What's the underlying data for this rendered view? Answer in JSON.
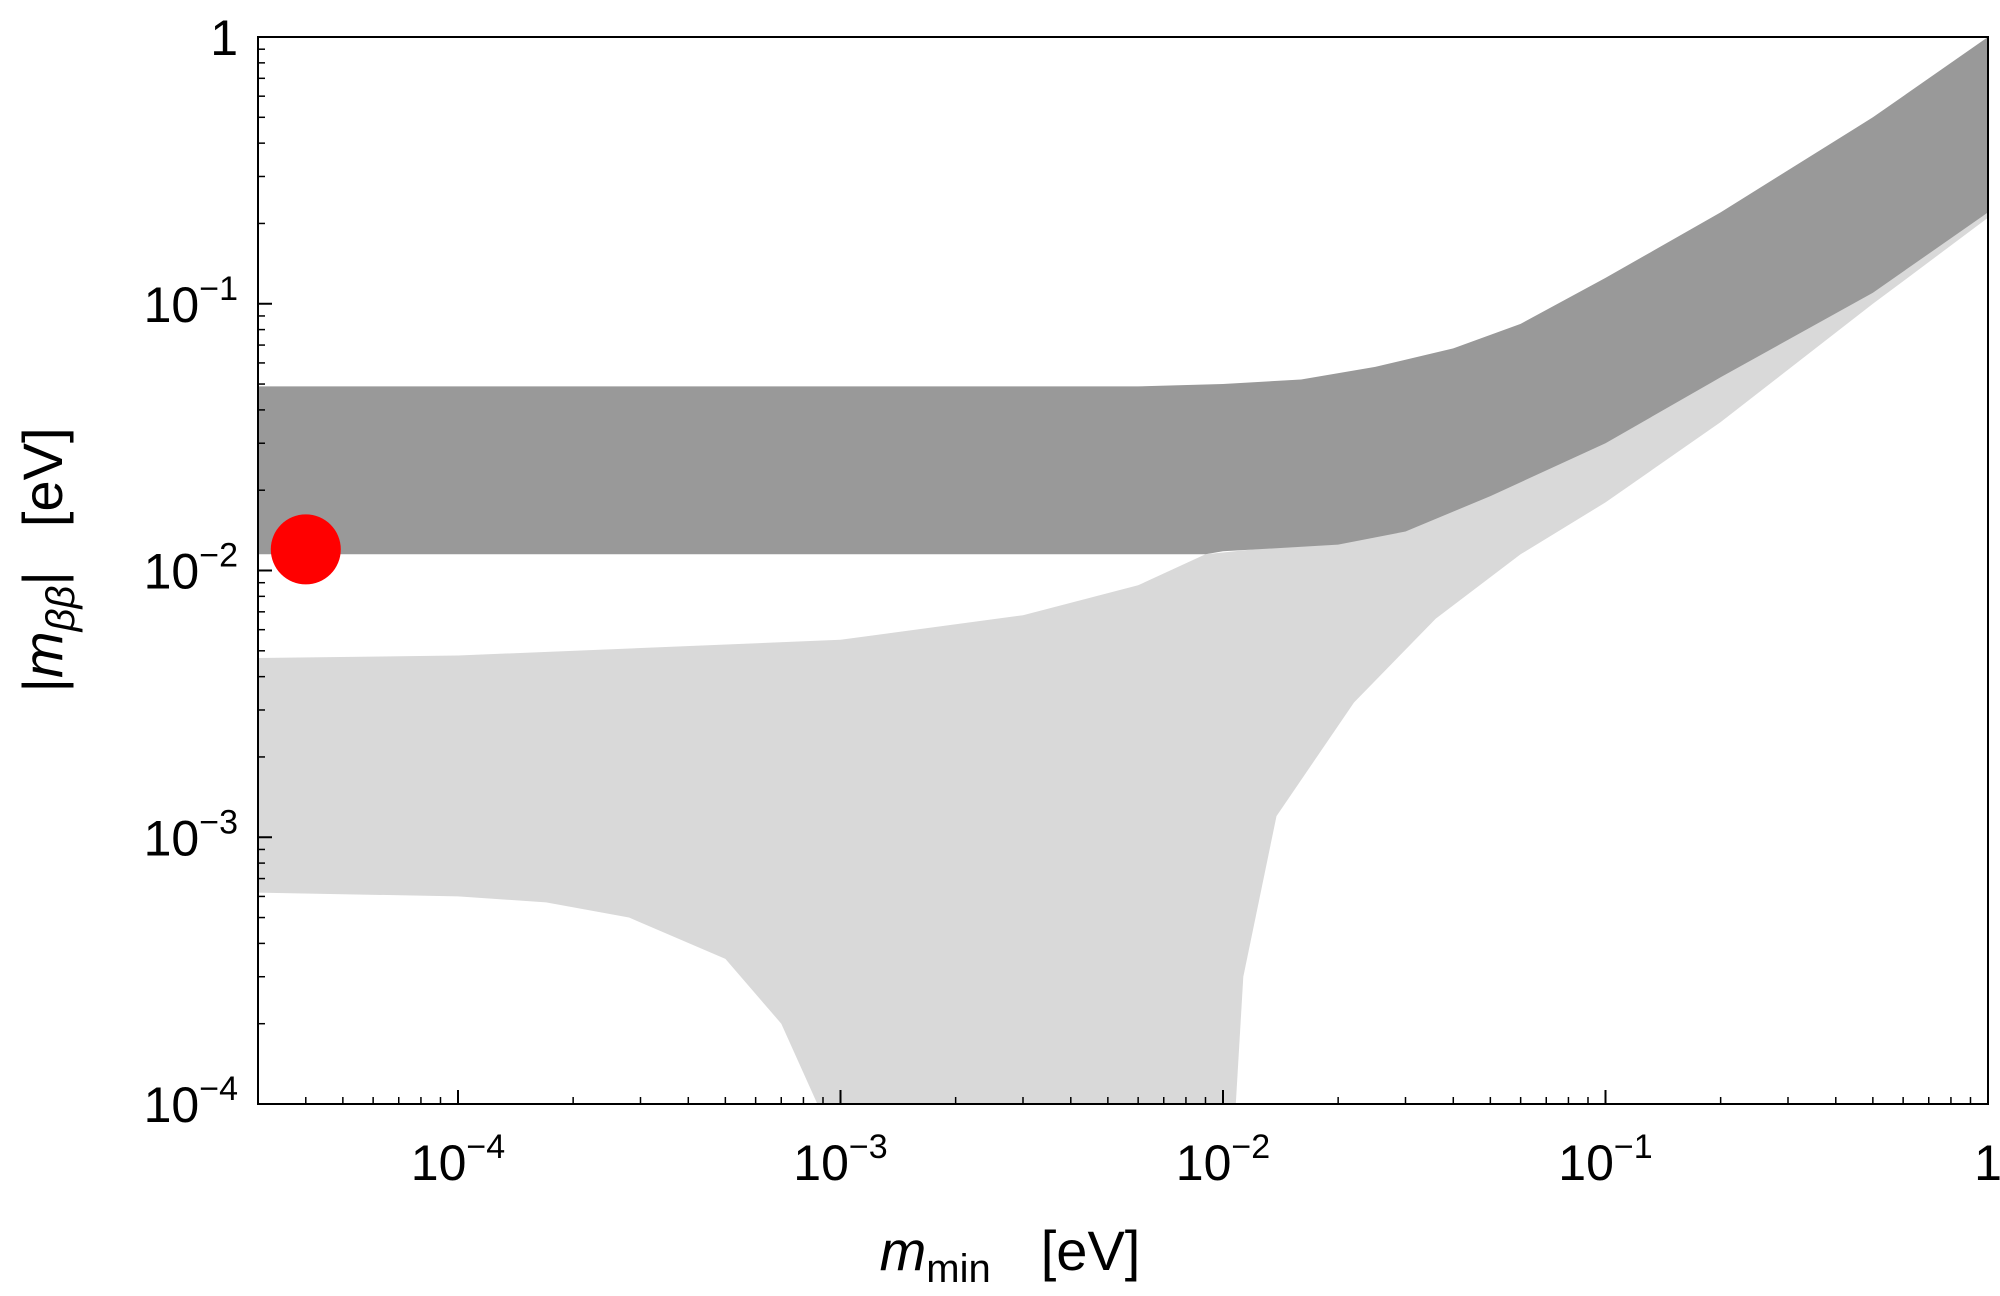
{
  "chart_data": {
    "type": "area",
    "title": "",
    "xlabel": {
      "main": "m",
      "sub": "min",
      "unit": "[eV]"
    },
    "ylabel": {
      "left_bar": "|",
      "main": "m",
      "sub": "ββ",
      "right_bar": "|",
      "unit": "[eV]"
    },
    "x_scale": "log",
    "y_scale": "log",
    "xlim": [
      3e-05,
      1
    ],
    "ylim": [
      0.0001,
      1
    ],
    "x_ticks": [
      {
        "value": 0.0001,
        "base": "10",
        "exp": "−4"
      },
      {
        "value": 0.001,
        "base": "10",
        "exp": "−3"
      },
      {
        "value": 0.01,
        "base": "10",
        "exp": "−2"
      },
      {
        "value": 0.1,
        "base": "10",
        "exp": "−1"
      },
      {
        "value": 1,
        "base": "1",
        "exp": ""
      }
    ],
    "y_ticks": [
      {
        "value": 0.0001,
        "base": "10",
        "exp": "−4"
      },
      {
        "value": 0.001,
        "base": "10",
        "exp": "−3"
      },
      {
        "value": 0.01,
        "base": "10",
        "exp": "−2"
      },
      {
        "value": 0.1,
        "base": "10",
        "exp": "−1"
      },
      {
        "value": 1,
        "base": "1",
        "exp": ""
      }
    ],
    "grid": false,
    "legend": "none",
    "series": [
      {
        "fill": "#d9d9d9",
        "upper": [
          [
            3e-05,
            0.0047
          ],
          [
            0.0001,
            0.0048
          ],
          [
            0.001,
            0.0055
          ],
          [
            0.003,
            0.0068
          ],
          [
            0.006,
            0.0088
          ],
          [
            0.009,
            0.0115
          ],
          [
            0.012,
            0.012
          ],
          [
            0.02,
            0.0128
          ],
          [
            0.03,
            0.0148
          ],
          [
            0.05,
            0.02
          ],
          [
            0.1,
            0.032
          ],
          [
            0.2,
            0.056
          ],
          [
            0.5,
            0.12
          ],
          [
            1,
            0.22
          ]
        ],
        "lower": [
          [
            3e-05,
            0.00062
          ],
          [
            0.0001,
            0.0006
          ],
          [
            0.00017,
            0.00057
          ],
          [
            0.00028,
            0.0005
          ],
          [
            0.0005,
            0.00035
          ],
          [
            0.0007,
            0.0002
          ],
          [
            0.00087,
            0.0001
          ],
          [
            0.0108,
            0.0001
          ],
          [
            0.0113,
            0.0003
          ],
          [
            0.0138,
            0.0012
          ],
          [
            0.022,
            0.0032
          ],
          [
            0.036,
            0.0066
          ],
          [
            0.06,
            0.0115
          ],
          [
            0.1,
            0.018
          ],
          [
            0.2,
            0.036
          ],
          [
            0.5,
            0.1
          ],
          [
            1,
            0.21
          ]
        ]
      },
      {
        "fill": "#999999",
        "upper": [
          [
            3e-05,
            0.049
          ],
          [
            0.0001,
            0.049
          ],
          [
            0.001,
            0.049
          ],
          [
            0.006,
            0.049
          ],
          [
            0.01,
            0.05
          ],
          [
            0.016,
            0.052
          ],
          [
            0.025,
            0.058
          ],
          [
            0.04,
            0.068
          ],
          [
            0.06,
            0.084
          ],
          [
            0.1,
            0.125
          ],
          [
            0.2,
            0.22
          ],
          [
            0.5,
            0.5
          ],
          [
            1,
            1
          ]
        ],
        "lower": [
          [
            3e-05,
            0.0115
          ],
          [
            0.0001,
            0.0115
          ],
          [
            0.001,
            0.0115
          ],
          [
            0.009,
            0.0115
          ],
          [
            0.01,
            0.0118
          ],
          [
            0.02,
            0.0125
          ],
          [
            0.03,
            0.014
          ],
          [
            0.05,
            0.019
          ],
          [
            0.1,
            0.03
          ],
          [
            0.2,
            0.053
          ],
          [
            0.5,
            0.11
          ],
          [
            1,
            0.22
          ]
        ]
      }
    ],
    "points": [
      {
        "x": 4e-05,
        "y": 0.012,
        "color": "#ff0000"
      }
    ]
  }
}
